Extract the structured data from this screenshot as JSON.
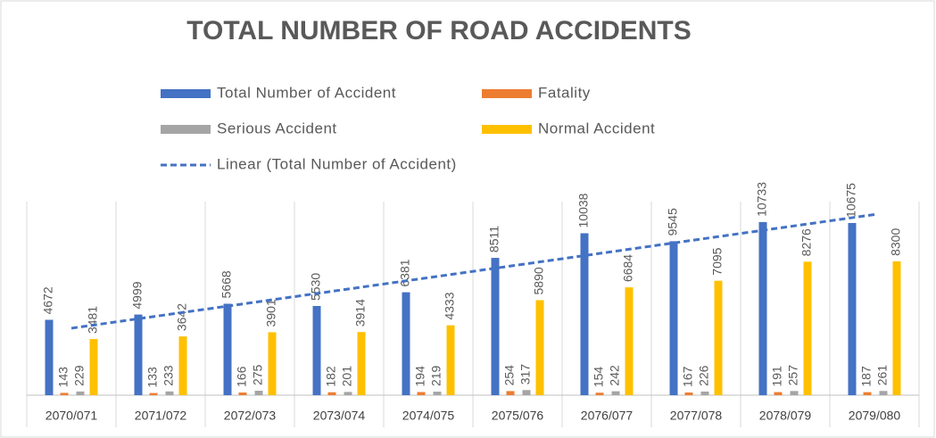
{
  "chart_data": {
    "type": "bar",
    "title": "TOTAL NUMBER OF ROAD ACCIDENTS",
    "categories": [
      "2070/071",
      "2071/072",
      "2072/073",
      "2073/074",
      "2074/075",
      "2075/076",
      "2076/077",
      "2077/078",
      "2078/079",
      "2079/080"
    ],
    "series": [
      {
        "name": "Total Number of Accident",
        "color": "#4472c4",
        "values": [
          4672,
          4999,
          5668,
          5530,
          6381,
          8511,
          10038,
          9545,
          10733,
          10675
        ]
      },
      {
        "name": "Fatality",
        "color": "#ed7d31",
        "values": [
          143,
          133,
          166,
          182,
          194,
          254,
          154,
          167,
          191,
          187
        ]
      },
      {
        "name": "Serious Accident",
        "color": "#a5a5a5",
        "values": [
          229,
          233,
          275,
          201,
          219,
          317,
          242,
          226,
          257,
          261
        ]
      },
      {
        "name": "Normal Accident",
        "color": "#ffc000",
        "values": [
          3481,
          3642,
          3901,
          3914,
          4333,
          5890,
          6684,
          7095,
          8276,
          8300
        ]
      }
    ],
    "trendline": {
      "name": "Linear (Total Number of Accident)",
      "series": 0,
      "color": "#4472c4",
      "style": "dashed"
    },
    "ylim": [
      0,
      12000
    ],
    "legend": "top",
    "data_labels": true
  }
}
